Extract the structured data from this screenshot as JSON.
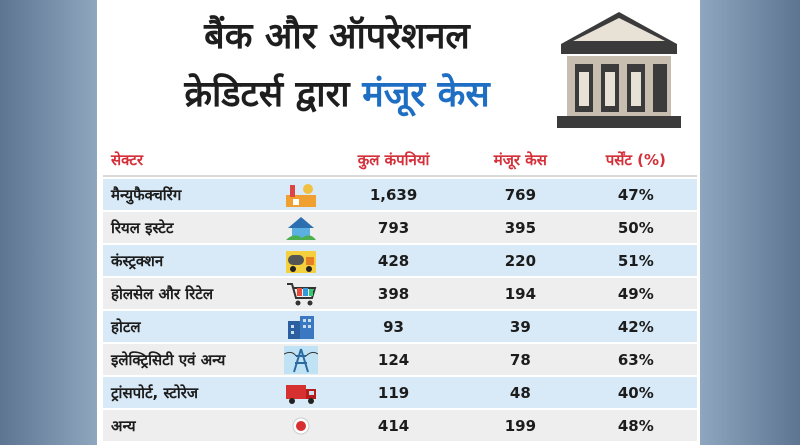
{
  "title": {
    "line1": "बैंक और ऑपरेशनल",
    "line2_prefix": "क्रेडिटर्स द्वारा",
    "line2_highlight": "मंजूर केस"
  },
  "headers": [
    "सेक्टर",
    "कुल कंपनियां",
    "मंजूर केस",
    "पर्सेंट (%)"
  ],
  "rows": [
    {
      "sector": "मैन्युफैक्चरिंग",
      "icon": "factory-icon",
      "companies": "1,639",
      "approved": "769",
      "percent": "47%"
    },
    {
      "sector": "रियल इस्टेट",
      "icon": "house-icon",
      "companies": "793",
      "approved": "395",
      "percent": "50%"
    },
    {
      "sector": "कंस्ट्रक्शन",
      "icon": "cement-truck-icon",
      "companies": "428",
      "approved": "220",
      "percent": "51%"
    },
    {
      "sector": "होलसेल और रिटेल",
      "icon": "shopping-cart-icon",
      "companies": "398",
      "approved": "194",
      "percent": "49%"
    },
    {
      "sector": "होटल",
      "icon": "hotel-building-icon",
      "companies": "93",
      "approved": "39",
      "percent": "42%"
    },
    {
      "sector": "इलेक्ट्रिसिटी एवं अन्य",
      "icon": "power-tower-icon",
      "companies": "124",
      "approved": "78",
      "percent": "63%"
    },
    {
      "sector": "ट्रांसपोर्ट, स्टोरेज",
      "icon": "truck-icon",
      "companies": "119",
      "approved": "48",
      "percent": "40%"
    },
    {
      "sector": "अन्य",
      "icon": "dot-icon",
      "companies": "414",
      "approved": "199",
      "percent": "48%"
    }
  ],
  "colors": {
    "header_text": "#d4303a",
    "highlight": "#1e6fc4",
    "row_blue": "#d8eaf7",
    "row_grey": "#eeeeee"
  }
}
